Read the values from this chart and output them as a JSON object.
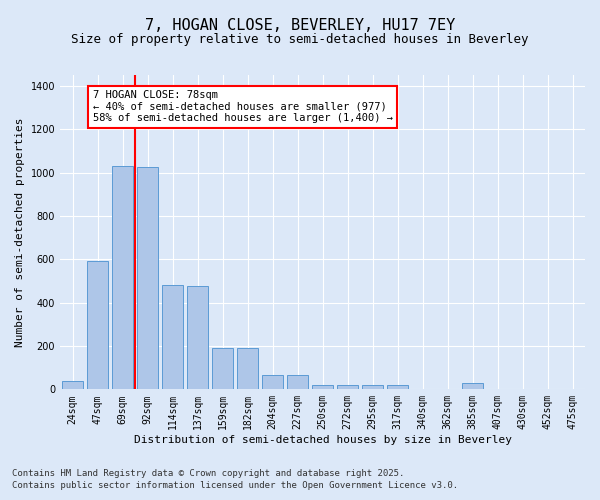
{
  "title": "7, HOGAN CLOSE, BEVERLEY, HU17 7EY",
  "subtitle": "Size of property relative to semi-detached houses in Beverley",
  "xlabel": "Distribution of semi-detached houses by size in Beverley",
  "ylabel": "Number of semi-detached properties",
  "categories": [
    "24sqm",
    "47sqm",
    "69sqm",
    "92sqm",
    "114sqm",
    "137sqm",
    "159sqm",
    "182sqm",
    "204sqm",
    "227sqm",
    "250sqm",
    "272sqm",
    "295sqm",
    "317sqm",
    "340sqm",
    "362sqm",
    "385sqm",
    "407sqm",
    "430sqm",
    "452sqm",
    "475sqm"
  ],
  "values": [
    40,
    590,
    1030,
    1025,
    480,
    475,
    190,
    192,
    65,
    68,
    20,
    22,
    20,
    18,
    0,
    0,
    28,
    0,
    0,
    0,
    0
  ],
  "bar_color": "#aec6e8",
  "bar_edge_color": "#5b9bd5",
  "bg_color": "#dce8f8",
  "grid_color": "#ffffff",
  "vline_x": 2.5,
  "vline_color": "red",
  "annotation_text": "7 HOGAN CLOSE: 78sqm\n← 40% of semi-detached houses are smaller (977)\n58% of semi-detached houses are larger (1,400) →",
  "annotation_box_color": "#ffffff",
  "annotation_box_edge": "red",
  "ylim": [
    0,
    1450
  ],
  "yticks": [
    0,
    200,
    400,
    600,
    800,
    1000,
    1200,
    1400
  ],
  "footnote1": "Contains HM Land Registry data © Crown copyright and database right 2025.",
  "footnote2": "Contains public sector information licensed under the Open Government Licence v3.0.",
  "title_fontsize": 11,
  "subtitle_fontsize": 9,
  "label_fontsize": 8,
  "tick_fontsize": 7,
  "annot_fontsize": 7.5,
  "footnote_fontsize": 6.5
}
